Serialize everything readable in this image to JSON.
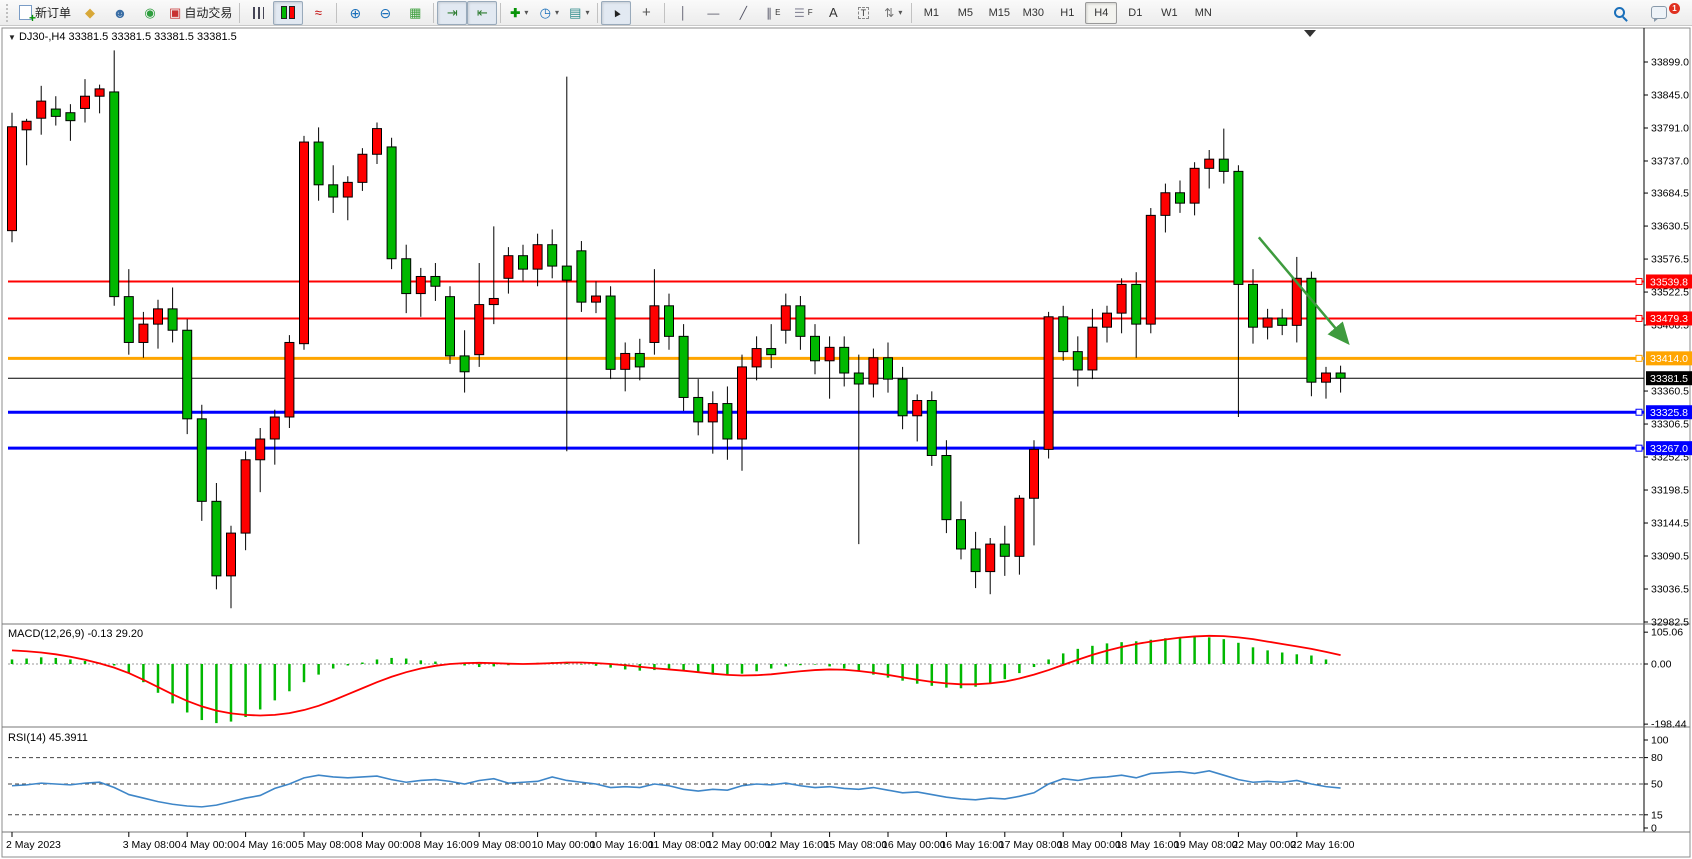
{
  "toolbar": {
    "new_order_label": "新订单",
    "auto_trading_label": "自动交易",
    "text_tool": "A",
    "label_tool": "T",
    "channel_tool_letter": "E",
    "fibo_tool_letter": "F",
    "timeframes": [
      "M1",
      "M5",
      "M15",
      "M30",
      "H1",
      "H4",
      "D1",
      "W1",
      "MN"
    ],
    "active_timeframe": "H4",
    "notification_count": "1"
  },
  "chart": {
    "title_symbol": "DJ30-,H4",
    "title_quotes": "33381.5 33381.5 33381.5 33381.5",
    "dropdown_glyph": "▼"
  },
  "chart_data": {
    "type": "candlestick",
    "symbol": "DJ30-",
    "timeframe": "H4",
    "up_color": "#fe0000",
    "down_color": "#00b800",
    "wick_color": "#000000",
    "y_axis_ticks": [
      "33899.0",
      "33845.0",
      "33791.0",
      "33737.0",
      "33684.5",
      "33630.5",
      "33576.5",
      "33522.5",
      "33468.5",
      "33360.5",
      "33306.5",
      "33252.5",
      "33198.5",
      "33144.5",
      "33090.5",
      "33036.5",
      "32982.5"
    ],
    "hlines": [
      {
        "price": 33539.8,
        "label": "33539.8",
        "color": "#fe0000",
        "width": 2
      },
      {
        "price": 33479.3,
        "label": "33479.3",
        "color": "#fe0000",
        "width": 2
      },
      {
        "price": 33414.0,
        "label": "33414.0",
        "color": "#ffa500",
        "width": 3
      },
      {
        "price": 33381.5,
        "label": "33381.5",
        "color": "#000000",
        "width": 1,
        "role": "current-price"
      },
      {
        "price": 33325.8,
        "label": "33325.8",
        "color": "#0000fe",
        "width": 3
      },
      {
        "price": 33267.0,
        "label": "33267.0",
        "color": "#0000fe",
        "width": 3
      }
    ],
    "x_labels": [
      {
        "t": "2 May 2023",
        "i": 0
      },
      {
        "t": "3 May 08:00",
        "i": 8
      },
      {
        "t": "4 May 00:00",
        "i": 12
      },
      {
        "t": "4 May 16:00",
        "i": 16
      },
      {
        "t": "5 May 08:00",
        "i": 20
      },
      {
        "t": "8 May 00:00",
        "i": 24
      },
      {
        "t": "8 May 16:00",
        "i": 28
      },
      {
        "t": "9 May 08:00",
        "i": 32
      },
      {
        "t": "10 May 00:00",
        "i": 36
      },
      {
        "t": "10 May 16:00",
        "i": 40
      },
      {
        "t": "11 May 08:00",
        "i": 44
      },
      {
        "t": "12 May 00:00",
        "i": 48
      },
      {
        "t": "12 May 16:00",
        "i": 52
      },
      {
        "t": "15 May 08:00",
        "i": 56
      },
      {
        "t": "16 May 00:00",
        "i": 60
      },
      {
        "t": "16 May 16:00",
        "i": 64
      },
      {
        "t": "17 May 08:00",
        "i": 68
      },
      {
        "t": "18 May 00:00",
        "i": 72
      },
      {
        "t": "18 May 16:00",
        "i": 76
      },
      {
        "t": "19 May 08:00",
        "i": 80
      },
      {
        "t": "22 May 00:00",
        "i": 84
      },
      {
        "t": "22 May 16:00",
        "i": 88
      }
    ],
    "candles": [
      [
        33623,
        33816,
        33604,
        33793
      ],
      [
        33788,
        33806,
        33730,
        33802
      ],
      [
        33807,
        33860,
        33780,
        33835
      ],
      [
        33822,
        33843,
        33795,
        33810
      ],
      [
        33816,
        33830,
        33770,
        33803
      ],
      [
        33823,
        33871,
        33800,
        33843
      ],
      [
        33843,
        33862,
        33815,
        33855
      ],
      [
        33850,
        33918,
        33500,
        33515
      ],
      [
        33515,
        33560,
        33420,
        33440
      ],
      [
        33440,
        33490,
        33415,
        33470
      ],
      [
        33470,
        33510,
        33430,
        33495
      ],
      [
        33495,
        33530,
        33440,
        33460
      ],
      [
        33460,
        33478,
        33290,
        33315
      ],
      [
        33315,
        33338,
        33148,
        33180
      ],
      [
        33180,
        33210,
        33036,
        33058
      ],
      [
        33058,
        33140,
        33005,
        33128
      ],
      [
        33128,
        33262,
        33100,
        33248
      ],
      [
        33248,
        33300,
        33195,
        33282
      ],
      [
        33282,
        33330,
        33240,
        33318
      ],
      [
        33318,
        33452,
        33300,
        33440
      ],
      [
        33438,
        33778,
        33428,
        33768
      ],
      [
        33768,
        33792,
        33672,
        33698
      ],
      [
        33698,
        33730,
        33652,
        33678
      ],
      [
        33678,
        33712,
        33640,
        33702
      ],
      [
        33702,
        33758,
        33688,
        33748
      ],
      [
        33748,
        33800,
        33732,
        33790
      ],
      [
        33760,
        33775,
        33560,
        33577
      ],
      [
        33577,
        33600,
        33488,
        33520
      ],
      [
        33520,
        33562,
        33482,
        33548
      ],
      [
        33548,
        33570,
        33508,
        33532
      ],
      [
        33515,
        33532,
        33405,
        33418
      ],
      [
        33418,
        33460,
        33358,
        33392
      ],
      [
        33420,
        33570,
        33400,
        33502
      ],
      [
        33502,
        33630,
        33470,
        33512
      ],
      [
        33545,
        33596,
        33520,
        33582
      ],
      [
        33582,
        33600,
        33540,
        33560
      ],
      [
        33560,
        33618,
        33532,
        33600
      ],
      [
        33600,
        33625,
        33545,
        33565
      ],
      [
        33565,
        33875,
        33262,
        33542
      ],
      [
        33590,
        33606,
        33490,
        33506
      ],
      [
        33506,
        33540,
        33488,
        33516
      ],
      [
        33516,
        33532,
        33380,
        33396
      ],
      [
        33396,
        33440,
        33360,
        33422
      ],
      [
        33422,
        33446,
        33378,
        33400
      ],
      [
        33440,
        33560,
        33420,
        33500
      ],
      [
        33500,
        33520,
        33428,
        33450
      ],
      [
        33450,
        33470,
        33328,
        33350
      ],
      [
        33350,
        33380,
        33288,
        33310
      ],
      [
        33310,
        33360,
        33258,
        33340
      ],
      [
        33340,
        33368,
        33248,
        33282
      ],
      [
        33282,
        33420,
        33230,
        33400
      ],
      [
        33400,
        33450,
        33378,
        33430
      ],
      [
        33430,
        33470,
        33398,
        33420
      ],
      [
        33460,
        33520,
        33438,
        33500
      ],
      [
        33500,
        33516,
        33428,
        33450
      ],
      [
        33450,
        33470,
        33388,
        33410
      ],
      [
        33410,
        33450,
        33348,
        33432
      ],
      [
        33432,
        33450,
        33368,
        33390
      ],
      [
        33390,
        33420,
        33110,
        33372
      ],
      [
        33372,
        33430,
        33350,
        33415
      ],
      [
        33415,
        33440,
        33358,
        33380
      ],
      [
        33380,
        33400,
        33298,
        33320
      ],
      [
        33320,
        33355,
        33278,
        33345
      ],
      [
        33345,
        33360,
        33238,
        33255
      ],
      [
        33255,
        33280,
        33128,
        33150
      ],
      [
        33150,
        33180,
        33085,
        33102
      ],
      [
        33102,
        33130,
        33038,
        33065
      ],
      [
        33065,
        33120,
        33028,
        33110
      ],
      [
        33110,
        33140,
        33058,
        33090
      ],
      [
        33090,
        33190,
        33060,
        33185
      ],
      [
        33185,
        33280,
        33108,
        33265
      ],
      [
        33265,
        33490,
        33250,
        33482
      ],
      [
        33482,
        33500,
        33410,
        33425
      ],
      [
        33425,
        33450,
        33368,
        33395
      ],
      [
        33395,
        33495,
        33380,
        33465
      ],
      [
        33465,
        33500,
        33440,
        33488
      ],
      [
        33488,
        33545,
        33455,
        33535
      ],
      [
        33535,
        33555,
        33415,
        33470
      ],
      [
        33470,
        33660,
        33455,
        33648
      ],
      [
        33648,
        33700,
        33620,
        33685
      ],
      [
        33685,
        33705,
        33652,
        33668
      ],
      [
        33668,
        33735,
        33648,
        33725
      ],
      [
        33725,
        33755,
        33692,
        33740
      ],
      [
        33740,
        33790,
        33700,
        33720
      ],
      [
        33720,
        33730,
        33318,
        33535
      ],
      [
        33535,
        33560,
        33438,
        33465
      ],
      [
        33465,
        33495,
        33445,
        33480
      ],
      [
        33480,
        33495,
        33452,
        33468
      ],
      [
        33468,
        33580,
        33440,
        33545
      ],
      [
        33545,
        33556,
        33352,
        33375
      ],
      [
        33375,
        33400,
        33348,
        33390
      ],
      [
        33390,
        33402,
        33358,
        33381.5
      ]
    ],
    "arrow_annotation": {
      "color": "#3e9b3e",
      "i1": 85.4,
      "p1": 33612,
      "i2": 91.4,
      "p2": 33442
    },
    "macd": {
      "label": "MACD(12,26,9) -0.13 29.20",
      "params": "12,26,9",
      "main_value": -0.13,
      "signal_value": 29.2,
      "hist_color": "#00b800",
      "signal_color": "#fe0000",
      "y_ticks": [
        "105.06",
        "0.00",
        "-198.44"
      ],
      "histogram": [
        15,
        18,
        22,
        20,
        15,
        10,
        5,
        -5,
        -30,
        -60,
        -95,
        -130,
        -160,
        -185,
        -195,
        -190,
        -175,
        -150,
        -120,
        -90,
        -60,
        -35,
        -15,
        -5,
        5,
        15,
        20,
        18,
        12,
        8,
        2,
        -5,
        -10,
        -8,
        -4,
        0,
        4,
        6,
        3,
        -2,
        -6,
        -12,
        -18,
        -22,
        -20,
        -15,
        -20,
        -28,
        -35,
        -38,
        -32,
        -24,
        -15,
        -8,
        -4,
        -2,
        -8,
        -15,
        -25,
        -35,
        -45,
        -55,
        -65,
        -72,
        -78,
        -80,
        -75,
        -65,
        -50,
        -30,
        -10,
        15,
        35,
        50,
        60,
        68,
        72,
        75,
        80,
        85,
        88,
        90,
        88,
        82,
        70,
        55,
        45,
        38,
        32,
        28,
        15,
        -0.13
      ],
      "signal": [
        45,
        42,
        38,
        32,
        24,
        14,
        2,
        -12,
        -30,
        -52,
        -76,
        -100,
        -122,
        -140,
        -154,
        -163,
        -168,
        -170,
        -168,
        -162,
        -152,
        -138,
        -120,
        -100,
        -80,
        -60,
        -42,
        -27,
        -15,
        -6,
        0,
        3,
        4,
        3,
        1,
        0,
        1,
        3,
        5,
        5,
        3,
        0,
        -4,
        -9,
        -14,
        -18,
        -22,
        -27,
        -32,
        -36,
        -38,
        -37,
        -34,
        -29,
        -24,
        -20,
        -18,
        -19,
        -23,
        -29,
        -36,
        -44,
        -52,
        -59,
        -64,
        -67,
        -67,
        -64,
        -58,
        -48,
        -35,
        -20,
        -3,
        14,
        30,
        44,
        56,
        66,
        74,
        81,
        87,
        91,
        93,
        92,
        88,
        82,
        74,
        66,
        58,
        50,
        40,
        29.2
      ]
    },
    "rsi": {
      "label": "RSI(14) 45.3911",
      "value": 45.3911,
      "line_color": "#3e86c8",
      "levels": [
        80,
        50,
        15
      ],
      "y_ticks": [
        "100",
        "80",
        "50",
        "15",
        "0"
      ],
      "values": [
        48,
        49,
        51,
        50,
        49,
        51,
        52,
        46,
        38,
        34,
        30,
        27,
        25,
        24,
        26,
        30,
        34,
        37,
        45,
        50,
        57,
        60,
        58,
        57,
        58,
        59,
        55,
        52,
        54,
        55,
        53,
        50,
        54,
        56,
        51,
        52,
        53,
        58,
        54,
        52,
        50,
        46,
        47,
        46,
        50,
        48,
        44,
        42,
        44,
        43,
        48,
        50,
        49,
        51,
        48,
        46,
        47,
        45,
        44,
        46,
        43,
        40,
        41,
        38,
        35,
        33,
        32,
        34,
        33,
        36,
        40,
        50,
        56,
        54,
        57,
        58,
        60,
        57,
        62,
        63,
        64,
        62,
        65,
        60,
        55,
        52,
        53,
        52,
        54,
        50,
        47,
        45.39
      ]
    }
  }
}
